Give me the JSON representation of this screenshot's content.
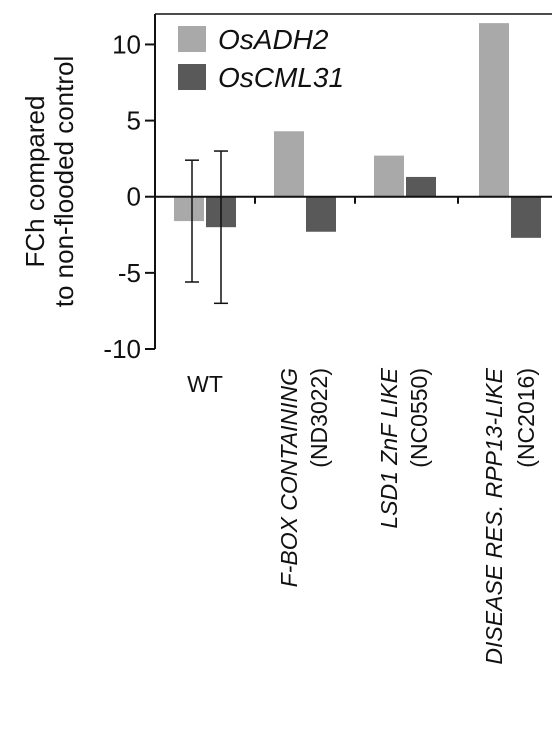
{
  "chart_data": {
    "type": "bar",
    "ylabel_lines": [
      "FCh compared",
      "to non-flooded control"
    ],
    "ylim": [
      -10,
      12
    ],
    "yticks": [
      "-10",
      "-5",
      "0",
      "5",
      "10"
    ],
    "ytick_values": [
      -10,
      -5,
      0,
      5,
      10
    ],
    "legend_position": "top-left",
    "categories": [
      {
        "lines": [
          "WT"
        ],
        "italic": [
          false
        ]
      },
      {
        "lines": [
          "F-BOX CONTAINING",
          "(ND3022)"
        ],
        "italic": [
          true,
          false
        ]
      },
      {
        "lines": [
          "LSD1 ZnF LIKE",
          "(NC0550)"
        ],
        "italic": [
          true,
          false
        ]
      },
      {
        "lines": [
          "DISEASE RES. RPP13-LIKE",
          "(NC2016)"
        ],
        "italic": [
          true,
          false
        ]
      }
    ],
    "series": [
      {
        "name": "OsADH2",
        "color": "#a9a9a9",
        "values": [
          -1.6,
          4.3,
          2.7,
          11.4
        ],
        "error": [
          4.0,
          null,
          null,
          null
        ]
      },
      {
        "name": "OsCML31",
        "color": "#595959",
        "values": [
          -2.0,
          -2.3,
          1.3,
          -2.7
        ],
        "error": [
          5.0,
          null,
          null,
          null
        ]
      }
    ]
  }
}
